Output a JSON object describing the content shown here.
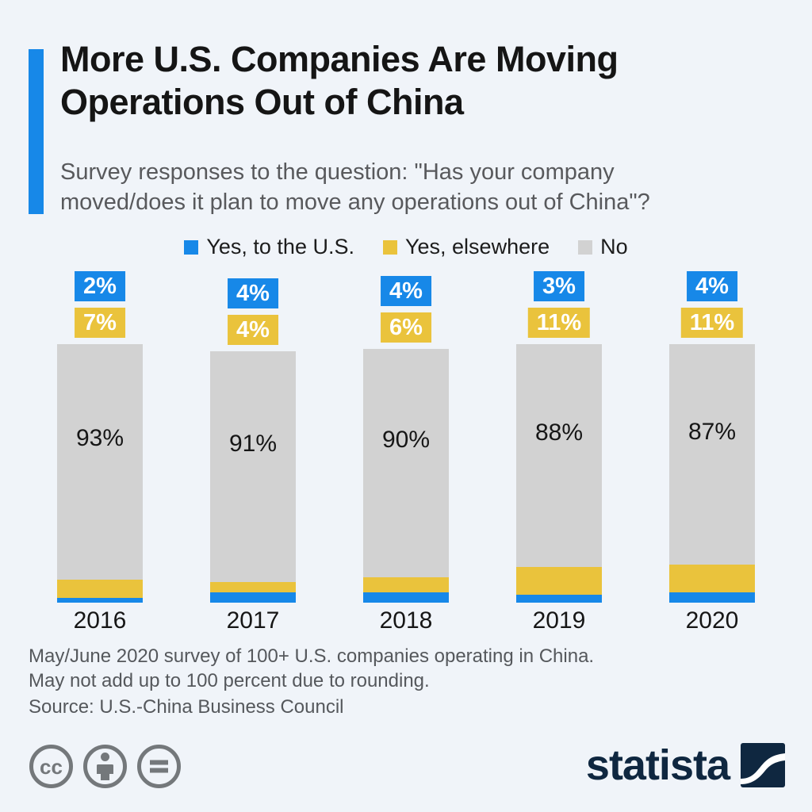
{
  "page": {
    "background": "#f0f4f9"
  },
  "header": {
    "title": "More U.S. Companies Are Moving Operations Out of China",
    "subtitle": "Survey responses to the question: \"Has your company moved/does it plan to move any operations out of China\"?",
    "accent_color": "#1788e8"
  },
  "chart_data": {
    "type": "bar",
    "subtype": "stacked-vertical",
    "categories": [
      "2016",
      "2017",
      "2018",
      "2019",
      "2020"
    ],
    "series": [
      {
        "name": "Yes, to the U.S.",
        "color": "#1788e8",
        "label_style": "outside-box",
        "values": [
          2,
          4,
          4,
          3,
          4
        ]
      },
      {
        "name": "Yes, elsewhere",
        "color": "#eac33c",
        "label_style": "outside-box",
        "values": [
          7,
          4,
          6,
          11,
          11
        ]
      },
      {
        "name": "No",
        "color": "#d2d2d2",
        "label_style": "inside",
        "values": [
          93,
          91,
          90,
          88,
          87
        ]
      }
    ],
    "unit": "%",
    "ylim": [
      0,
      100
    ],
    "grid": false,
    "legend_position": "top-center"
  },
  "footer": {
    "note_line1": "May/June 2020 survey of 100+ U.S. companies operating in China.",
    "note_line2": "May not add up to 100 percent due to rounding.",
    "source": "Source: U.S.-China Business Council"
  },
  "branding": {
    "cc_icons": [
      "cc-license-icon",
      "attribution-icon",
      "no-derivatives-icon"
    ],
    "logo_text": "statista",
    "logo_color": "#0f2740"
  }
}
